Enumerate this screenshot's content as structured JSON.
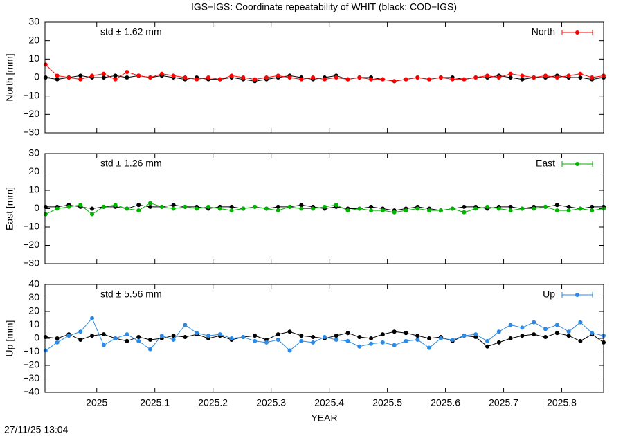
{
  "title": "IGS−IGS: Coordinate repeatability of WHIT (black: COD−IGS)",
  "timestamp": "27/11/25 13:04",
  "chart_data": [
    {
      "type": "line",
      "ylabel": "North [mm]",
      "annotation": "std ± 1.62 mm",
      "legend": "top-right",
      "xtick_labels": false,
      "x": [
        2024.912,
        2024.932,
        2024.952,
        2024.972,
        2024.992,
        2025.012,
        2025.032,
        2025.052,
        2025.072,
        2025.092,
        2025.112,
        2025.132,
        2025.152,
        2025.172,
        2025.192,
        2025.212,
        2025.232,
        2025.252,
        2025.272,
        2025.292,
        2025.312,
        2025.332,
        2025.352,
        2025.372,
        2025.392,
        2025.412,
        2025.432,
        2025.452,
        2025.472,
        2025.492,
        2025.512,
        2025.532,
        2025.552,
        2025.572,
        2025.592,
        2025.612,
        2025.632,
        2025.652,
        2025.672,
        2025.692,
        2025.712,
        2025.732,
        2025.752,
        2025.772,
        2025.792,
        2025.812,
        2025.832,
        2025.852,
        2025.872
      ],
      "xlim": [
        2024.911,
        2025.872
      ],
      "xticks": [
        2025,
        2025.1,
        2025.2,
        2025.3,
        2025.4,
        2025.5,
        2025.6,
        2025.7,
        2025.8
      ],
      "ylim": [
        -30,
        30
      ],
      "yticks": [
        {
          "value": -30,
          "label": "−30"
        },
        {
          "value": -20,
          "label": "−20"
        },
        {
          "value": -10,
          "label": "−10"
        },
        0,
        10,
        20,
        30
      ],
      "series": [
        {
          "color": "#000000",
          "values": [
            0,
            -1,
            0,
            1,
            0,
            0,
            1,
            0,
            1,
            0,
            1,
            0,
            -1,
            0,
            -1,
            -1,
            0,
            -1,
            -2,
            -1,
            0,
            1,
            0,
            -1,
            0,
            1,
            -1,
            0,
            0,
            -1,
            -2,
            -1,
            0,
            -1,
            0,
            0,
            -1,
            0,
            0,
            1,
            0,
            -1,
            0,
            0,
            1,
            0,
            0,
            -1,
            0
          ]
        },
        {
          "name": "North",
          "color": "#ff0000",
          "values": [
            7,
            1,
            0,
            -1,
            1,
            2,
            -1,
            3,
            1,
            0,
            2,
            1,
            0,
            -1,
            0,
            -1,
            1,
            0,
            -1,
            0,
            1,
            0,
            -1,
            0,
            -1,
            0,
            -1,
            0,
            -1,
            -1,
            -2,
            -1,
            0,
            -1,
            0,
            -1,
            -1,
            0,
            1,
            0,
            2,
            1,
            0,
            1,
            0,
            1,
            2,
            0,
            1
          ]
        }
      ]
    },
    {
      "type": "line",
      "ylabel": "East [mm]",
      "annotation": "std ± 1.26 mm",
      "legend": "top-right",
      "xtick_labels": false,
      "x": [
        2024.912,
        2024.932,
        2024.952,
        2024.972,
        2024.992,
        2025.012,
        2025.032,
        2025.052,
        2025.072,
        2025.092,
        2025.112,
        2025.132,
        2025.152,
        2025.172,
        2025.192,
        2025.212,
        2025.232,
        2025.252,
        2025.272,
        2025.292,
        2025.312,
        2025.332,
        2025.352,
        2025.372,
        2025.392,
        2025.412,
        2025.432,
        2025.452,
        2025.472,
        2025.492,
        2025.512,
        2025.532,
        2025.552,
        2025.572,
        2025.592,
        2025.612,
        2025.632,
        2025.652,
        2025.672,
        2025.692,
        2025.712,
        2025.732,
        2025.752,
        2025.772,
        2025.792,
        2025.812,
        2025.832,
        2025.852,
        2025.872
      ],
      "xlim": [
        2024.911,
        2025.872
      ],
      "xticks": [
        2025,
        2025.1,
        2025.2,
        2025.3,
        2025.4,
        2025.5,
        2025.6,
        2025.7,
        2025.8
      ],
      "ylim": [
        -30,
        30
      ],
      "yticks": [
        {
          "value": -30,
          "label": "−30"
        },
        {
          "value": -20,
          "label": "−20"
        },
        {
          "value": -10,
          "label": "−10"
        },
        0,
        10,
        20,
        30
      ],
      "series": [
        {
          "color": "#000000",
          "values": [
            1,
            1,
            2,
            1,
            0,
            1,
            1,
            0,
            2,
            1,
            1,
            2,
            1,
            1,
            0,
            1,
            1,
            0,
            1,
            0,
            1,
            1,
            2,
            1,
            0,
            1,
            0,
            0,
            1,
            0,
            -1,
            0,
            1,
            0,
            -1,
            0,
            1,
            1,
            0,
            1,
            1,
            0,
            1,
            1,
            2,
            1,
            0,
            1,
            1
          ]
        },
        {
          "name": "East",
          "color": "#00b400",
          "values": [
            -3,
            0,
            1,
            2,
            -3,
            1,
            2,
            0,
            -1,
            3,
            1,
            0,
            1,
            0,
            1,
            0,
            -1,
            0,
            1,
            0,
            -1,
            1,
            0,
            0,
            1,
            2,
            -1,
            0,
            -1,
            -1,
            -2,
            -1,
            0,
            -1,
            -1,
            0,
            -2,
            0,
            1,
            0,
            -1,
            0,
            0,
            1,
            -1,
            -1,
            0,
            -1,
            0
          ]
        }
      ]
    },
    {
      "type": "line",
      "ylabel": "Up [mm]",
      "annotation": "std ± 5.56 mm",
      "legend": "top-right",
      "xtick_labels": true,
      "xlabel": "YEAR",
      "x": [
        2024.912,
        2024.932,
        2024.952,
        2024.972,
        2024.992,
        2025.012,
        2025.032,
        2025.052,
        2025.072,
        2025.092,
        2025.112,
        2025.132,
        2025.152,
        2025.172,
        2025.192,
        2025.212,
        2025.232,
        2025.252,
        2025.272,
        2025.292,
        2025.312,
        2025.332,
        2025.352,
        2025.372,
        2025.392,
        2025.412,
        2025.432,
        2025.452,
        2025.472,
        2025.492,
        2025.512,
        2025.532,
        2025.552,
        2025.572,
        2025.592,
        2025.612,
        2025.632,
        2025.652,
        2025.672,
        2025.692,
        2025.712,
        2025.732,
        2025.752,
        2025.772,
        2025.792,
        2025.812,
        2025.832,
        2025.852,
        2025.872
      ],
      "xlim": [
        2024.911,
        2025.872
      ],
      "xticks": [
        2025,
        2025.1,
        2025.2,
        2025.3,
        2025.4,
        2025.5,
        2025.6,
        2025.7,
        2025.8
      ],
      "ylim": [
        -40,
        40
      ],
      "yticks": [
        {
          "value": -40,
          "label": "−40"
        },
        {
          "value": -30,
          "label": "−30"
        },
        {
          "value": -20,
          "label": "−20"
        },
        {
          "value": -10,
          "label": "−10"
        },
        0,
        10,
        20,
        30,
        40
      ],
      "series": [
        {
          "color": "#000000",
          "values": [
            1,
            0,
            3,
            -1,
            2,
            3,
            0,
            -2,
            1,
            -1,
            0,
            2,
            1,
            3,
            0,
            2,
            -1,
            1,
            2,
            -1,
            3,
            5,
            2,
            1,
            0,
            2,
            4,
            1,
            0,
            3,
            5,
            4,
            2,
            0,
            1,
            -2,
            2,
            1,
            -6,
            -3,
            0,
            2,
            3,
            1,
            4,
            2,
            -2,
            3,
            -3
          ]
        },
        {
          "name": "Up",
          "color": "#2a8ae6",
          "values": [
            -9,
            -3,
            2,
            5,
            15,
            -5,
            0,
            3,
            -2,
            -8,
            2,
            -1,
            10,
            4,
            2,
            3,
            0,
            1,
            -2,
            -3,
            -1,
            -9,
            -2,
            -3,
            1,
            -1,
            -2,
            -6,
            -4,
            -3,
            -5,
            -2,
            -1,
            -7,
            0,
            -1,
            2,
            3,
            -2,
            5,
            10,
            8,
            12,
            7,
            10,
            5,
            12,
            4,
            2
          ]
        }
      ]
    }
  ]
}
